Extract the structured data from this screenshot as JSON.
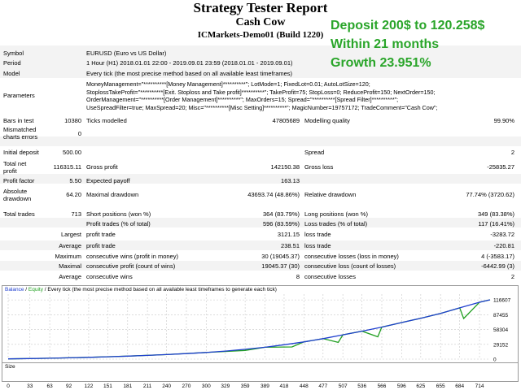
{
  "report": {
    "title": "Strategy Tester Report",
    "ea_name": "Cash Cow",
    "server": "ICMarkets-Demo01 (Build 1220)"
  },
  "annotation": {
    "line1": "Deposit 200$ to 120.258$",
    "line2": "Within 21 months",
    "line3": "Growth 23.951%"
  },
  "colors": {
    "annotation": "#2aa52a",
    "balance": "#1f3fcf",
    "equity": "#22a022",
    "size_bar": "#22a022",
    "grid": "#c8c8c8"
  },
  "info": {
    "symbol_label": "Symbol",
    "symbol_value": "EURUSD (Euro vs US Dollar)",
    "period_label": "Period",
    "period_value": "1 Hour (H1) 2018.01.01 22:00 - 2019.09.01 23:59 (2018.01.01 - 2019.09.01)",
    "model_label": "Model",
    "model_value": "Every tick (the most precise method based on all available least timeframes)",
    "parameters_label": "Parameters",
    "parameters_lines": [
      "MoneyManagement=\"**********[Money Management]**********\"; LotMode=1; FixedLot=0.01; AutoLotSize=120;",
      "StoplossTakeProfit=\"**********[Exit. Stoploss and Take profit]**********\"; TakeProfit=75; StopLoss=0; ReduceProfit=150; NextOrder=150;",
      "OrderManagement=\"**********[Order Management]**********\"; MaxOrders=15; Spread=\"**********[Spread Filter]**********\";",
      "UseSpreadFilter=true; MaxSpread=20; Misc=\"**********[Misc Setting]**********\"; MagicNumber=19757172; TradeComment=\"Cash Cow\";"
    ]
  },
  "stats": {
    "bars_label": "Bars in test",
    "bars_value": "10380",
    "ticks_label": "Ticks modelled",
    "ticks_value": "47805689",
    "quality_label": "Modelling quality",
    "quality_value": "99.90%",
    "mismatch_label_1": "Mismatched",
    "mismatch_label_2": "charts errors",
    "mismatch_value": "0",
    "deposit_label": "Initial deposit",
    "deposit_value": "500.00",
    "spread_label": "Spread",
    "spread_value": "2",
    "netprofit_label_1": "Total net",
    "netprofit_label_2": "profit",
    "netprofit_value": "116315.11",
    "grossprofit_label": "Gross profit",
    "grossprofit_value": "142150.38",
    "grossloss_label": "Gross loss",
    "grossloss_value": "-25835.27",
    "pf_label": "Profit factor",
    "pf_value": "5.50",
    "payoff_label": "Expected payoff",
    "payoff_value": "163.13",
    "absdd_label_1": "Absolute",
    "absdd_label_2": "drawdown",
    "absdd_value": "64.20",
    "maxdd_label": "Maximal drawdown",
    "maxdd_value": "43693.74 (48.86%)",
    "reldd_label": "Relative drawdown",
    "reldd_value": "77.74% (3720.62)",
    "trades_label": "Total trades",
    "trades_value": "713",
    "short_label": "Short positions (won %)",
    "short_value": "364 (83.79%)",
    "long_label": "Long positions (won %)",
    "long_value": "349 (83.38%)",
    "profit_trades_label": "Profit trades (% of total)",
    "profit_trades_value": "596 (83.59%)",
    "loss_trades_label": "Loss trades (% of total)",
    "loss_trades_value": "117 (16.41%)",
    "largest_label": "Largest",
    "largest_profit_label": "profit trade",
    "largest_profit_value": "3121.15",
    "largest_loss_label": "loss trade",
    "largest_loss_value": "-3283.72",
    "average_label": "Average",
    "average_profit_label": "profit trade",
    "average_profit_value": "238.51",
    "average_loss_label": "loss trade",
    "average_loss_value": "-220.81",
    "maximum_label": "Maximum",
    "max_cons_wins_label": "consecutive wins (profit in money)",
    "max_cons_wins_value": "30 (19045.37)",
    "max_cons_losses_label": "consecutive losses (loss in money)",
    "max_cons_losses_value": "4 (-3583.17)",
    "maximal_label": "Maximal",
    "maxl_cons_profit_label": "consecutive profit (count of wins)",
    "maxl_cons_profit_value": "19045.37 (30)",
    "maxl_cons_loss_label": "consecutive loss (count of losses)",
    "maxl_cons_loss_value": "-6442.99 (3)",
    "average2_label": "Average",
    "avg_cons_wins_label": "consecutive wins",
    "avg_cons_wins_value": "8",
    "avg_cons_losses_label": "consecutive losses",
    "avg_cons_losses_value": "2"
  },
  "chart_data": {
    "type": "line",
    "legend_balance": "Balance",
    "legend_sep": " / ",
    "legend_equity": "Equity",
    "legend_rest": " / Every tick (the most precise method based on all available least timeframes to generate each tick)",
    "size_label": "Size",
    "ylim": [
      0,
      128000
    ],
    "xlim": [
      0,
      730
    ],
    "y_ticks": [
      "116607",
      "87455",
      "58304",
      "29152",
      "0"
    ],
    "y_tick_values": [
      116607,
      87455,
      58304,
      29152,
      0
    ],
    "x_ticks": [
      "0",
      "33",
      "63",
      "92",
      "122",
      "151",
      "181",
      "211",
      "240",
      "270",
      "300",
      "329",
      "359",
      "389",
      "418",
      "448",
      "477",
      "507",
      "536",
      "566",
      "596",
      "625",
      "655",
      "684",
      "714"
    ],
    "x_tick_values": [
      0,
      33,
      63,
      92,
      122,
      151,
      181,
      211,
      240,
      270,
      300,
      329,
      359,
      389,
      418,
      448,
      477,
      507,
      536,
      566,
      596,
      625,
      655,
      684,
      714
    ],
    "series": [
      {
        "name": "Balance",
        "x": [
          0,
          33,
          63,
          92,
          122,
          151,
          181,
          211,
          240,
          270,
          300,
          329,
          359,
          389,
          418,
          448,
          477,
          507,
          536,
          566,
          596,
          625,
          655,
          684,
          714,
          730
        ],
        "values": [
          500,
          1100,
          1800,
          2600,
          3500,
          4600,
          5900,
          7300,
          8900,
          10900,
          13200,
          15900,
          19300,
          23300,
          28300,
          34000,
          40400,
          47800,
          55000,
          63000,
          72000,
          80500,
          90000,
          101000,
          112000,
          116815
        ]
      },
      {
        "name": "Equity",
        "x": [
          0,
          63,
          122,
          181,
          240,
          300,
          359,
          389,
          430,
          448,
          477,
          500,
          507,
          536,
          560,
          566,
          596,
          625,
          655,
          684,
          690,
          714,
          730
        ],
        "values": [
          500,
          1800,
          3500,
          5900,
          8900,
          13200,
          17200,
          23300,
          24000,
          34000,
          40400,
          33000,
          47800,
          55000,
          44000,
          63000,
          72000,
          80500,
          90000,
          101000,
          80000,
          112000,
          116815
        ]
      }
    ],
    "size_values": [
      1,
      1,
      1,
      1,
      1,
      1,
      1,
      1,
      1,
      1,
      1,
      1,
      1,
      2,
      2,
      2,
      3,
      4,
      5,
      6,
      7,
      8,
      9,
      10,
      11
    ]
  }
}
